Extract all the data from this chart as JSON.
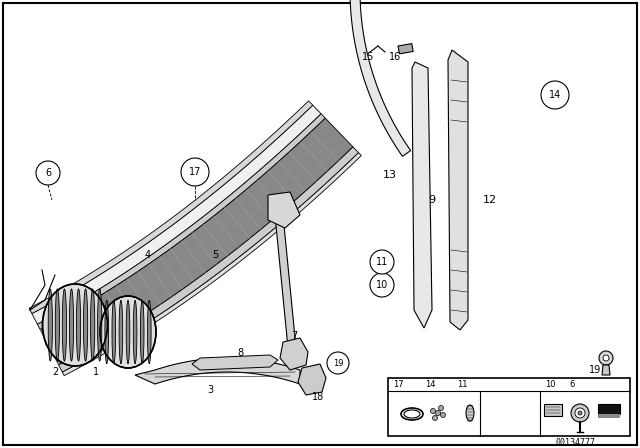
{
  "bg": "#ffffff",
  "border": "#000000",
  "diagram_id": "00134777",
  "fig_w": 6.4,
  "fig_h": 4.48,
  "dpi": 100,
  "lc": "#000000",
  "gc": "#555555"
}
